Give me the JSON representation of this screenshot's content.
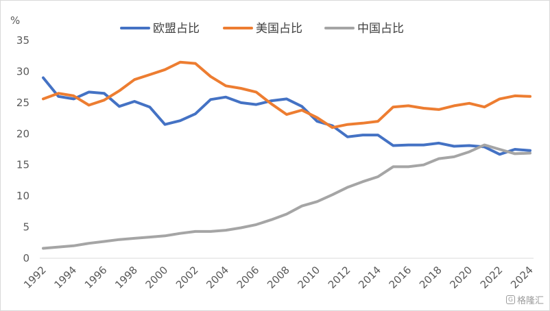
{
  "chart_data": {
    "type": "line",
    "title": "",
    "xlabel": "",
    "ylabel": "",
    "y_unit": "%",
    "ylim": [
      0,
      35
    ],
    "y_ticks": [
      0,
      5,
      10,
      15,
      20,
      25,
      30,
      35
    ],
    "x_range": [
      1992,
      2024
    ],
    "x_ticks": [
      1992,
      1994,
      1996,
      1998,
      2000,
      2002,
      2004,
      2006,
      2008,
      2010,
      2012,
      2014,
      2016,
      2018,
      2020,
      2022,
      2024
    ],
    "grid": false,
    "legend_position": "top",
    "x": [
      1992,
      1993,
      1994,
      1995,
      1996,
      1997,
      1998,
      1999,
      2000,
      2001,
      2002,
      2003,
      2004,
      2005,
      2006,
      2007,
      2008,
      2009,
      2010,
      2011,
      2012,
      2013,
      2014,
      2015,
      2016,
      2017,
      2018,
      2019,
      2020,
      2021,
      2022,
      2023,
      2024
    ],
    "series": [
      {
        "name": "欧盟占比",
        "color": "#4472c4",
        "values": [
          29.0,
          26.0,
          25.6,
          26.7,
          26.5,
          24.4,
          25.2,
          24.3,
          21.5,
          22.1,
          23.2,
          25.5,
          25.9,
          25.0,
          24.7,
          25.3,
          25.6,
          24.4,
          22.0,
          21.3,
          19.5,
          19.8,
          19.8,
          18.1,
          18.2,
          18.2,
          18.5,
          18.0,
          18.1,
          17.9,
          16.7,
          17.5,
          17.3
        ]
      },
      {
        "name": "美国占比",
        "color": "#ed7d31",
        "values": [
          25.6,
          26.5,
          26.1,
          24.6,
          25.4,
          26.9,
          28.7,
          29.5,
          30.3,
          31.5,
          31.3,
          29.2,
          27.7,
          27.3,
          26.7,
          24.8,
          23.1,
          23.8,
          22.6,
          21.0,
          21.5,
          21.7,
          22.0,
          24.3,
          24.5,
          24.1,
          23.9,
          24.5,
          24.9,
          24.3,
          25.6,
          26.1,
          26.0
        ]
      },
      {
        "name": "中国占比",
        "color": "#a5a5a5",
        "values": [
          1.6,
          1.8,
          2.0,
          2.4,
          2.7,
          3.0,
          3.2,
          3.4,
          3.6,
          4.0,
          4.3,
          4.3,
          4.5,
          4.9,
          5.4,
          6.2,
          7.1,
          8.4,
          9.1,
          10.2,
          11.4,
          12.3,
          13.1,
          14.7,
          14.7,
          15.0,
          16.0,
          16.3,
          17.1,
          18.2,
          17.5,
          16.8,
          16.9
        ]
      }
    ]
  },
  "watermark": {
    "icon": "gelonghui-logo-icon",
    "icon_glyph": "G",
    "text": "格隆汇"
  }
}
